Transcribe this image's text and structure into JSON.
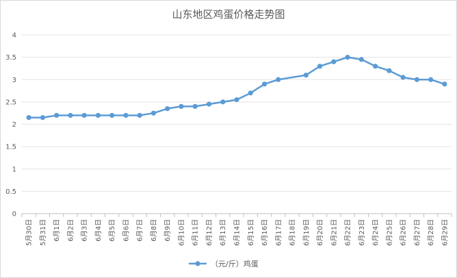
{
  "chart_data": {
    "type": "line",
    "title": "山东地区鸡蛋价格走势图",
    "categories": [
      "5月30日",
      "5月31日",
      "6月1日",
      "6月2日",
      "6月3日",
      "6月4日",
      "6月5日",
      "6月6日",
      "6月7日",
      "6月8日",
      "6月9日",
      "6月10日",
      "6月11日",
      "6月12日",
      "6月13日",
      "6月14日",
      "6月15日",
      "6月16日",
      "6月17日",
      "6月18日",
      "6月19日",
      "6月20日",
      "6月21日",
      "6月22日",
      "6月23日",
      "6月24日",
      "6月25日",
      "6月26日",
      "6月27日",
      "6月28日",
      "6月29日"
    ],
    "series": [
      {
        "name": "（元/斤）鸡蛋",
        "color": "#5b9bd5",
        "values": [
          2.15,
          2.15,
          2.2,
          2.2,
          2.2,
          2.2,
          2.2,
          2.2,
          2.2,
          2.25,
          2.35,
          2.4,
          2.4,
          2.45,
          2.5,
          2.55,
          2.7,
          2.9,
          3.0,
          null,
          3.1,
          3.3,
          3.4,
          3.5,
          3.45,
          3.3,
          3.2,
          3.05,
          3.0,
          3.0,
          2.9
        ]
      }
    ],
    "y_ticks": [
      "0",
      "0.5",
      "1",
      "1.5",
      "2",
      "2.5",
      "3",
      "3.5",
      "4"
    ],
    "ylim": [
      0,
      4
    ],
    "grid": true,
    "legend": "bottom"
  }
}
